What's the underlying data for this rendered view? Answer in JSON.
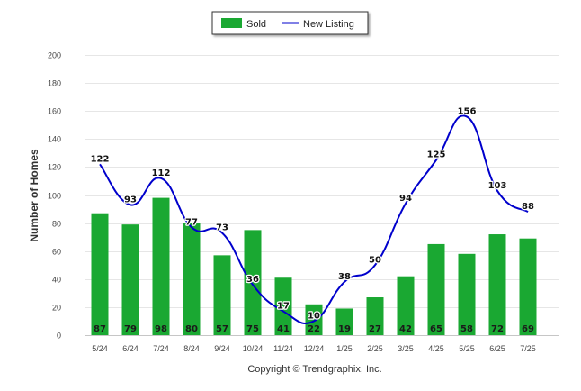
{
  "chart_data": {
    "type": "bar",
    "categories": [
      "5/24",
      "6/24",
      "7/24",
      "8/24",
      "9/24",
      "10/24",
      "11/24",
      "12/24",
      "1/25",
      "2/25",
      "3/25",
      "4/25",
      "5/25",
      "6/25",
      "7/25"
    ],
    "series": [
      {
        "name": "Sold",
        "type": "bar",
        "color": "#1aa832",
        "values": [
          87,
          79,
          98,
          80,
          57,
          75,
          41,
          22,
          19,
          27,
          42,
          65,
          58,
          72,
          69
        ]
      },
      {
        "name": "New Listing",
        "type": "line",
        "color": "#0000cc",
        "values": [
          122,
          93,
          112,
          77,
          73,
          36,
          17,
          10,
          38,
          50,
          94,
          125,
          156,
          103,
          88
        ]
      }
    ],
    "ylabel": "Number of Homes",
    "ylim": [
      0,
      200
    ],
    "yticks": [
      0,
      20,
      40,
      60,
      80,
      100,
      120,
      140,
      160,
      180,
      200
    ],
    "grid": true,
    "legend_position": "top-center"
  },
  "footer": "Copyright © Trendgraphix, Inc."
}
